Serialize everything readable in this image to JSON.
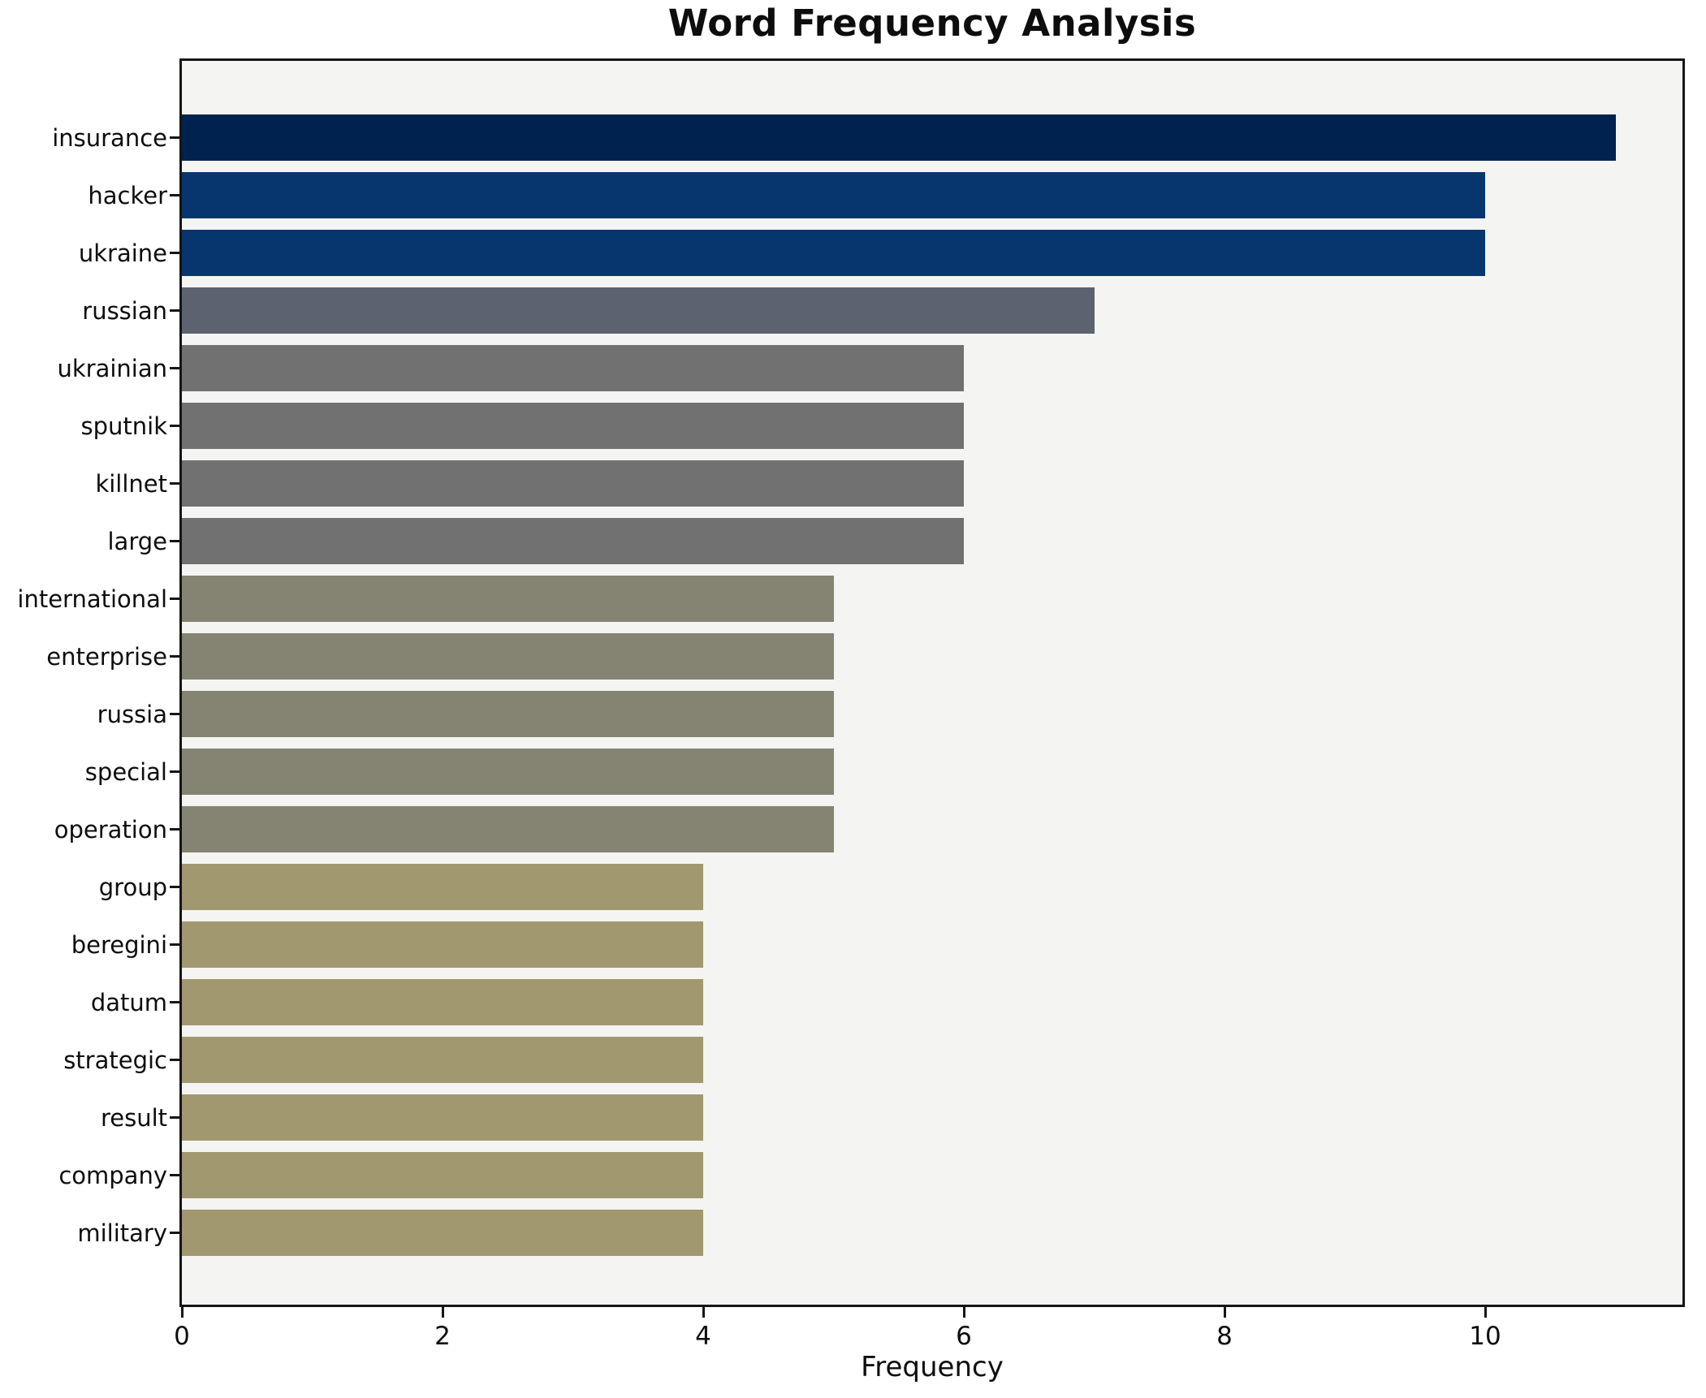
{
  "title": "Word Frequency Analysis",
  "x_axis": {
    "label": "Frequency",
    "tick_labels": [
      "0",
      "2",
      "4",
      "6",
      "8",
      "10"
    ]
  },
  "chart_data": {
    "type": "bar",
    "orientation": "horizontal",
    "title": "Word Frequency Analysis",
    "xlabel": "Frequency",
    "ylabel": "",
    "categories": [
      "insurance",
      "hacker",
      "ukraine",
      "russian",
      "ukrainian",
      "sputnik",
      "killnet",
      "large",
      "international",
      "enterprise",
      "russia",
      "special",
      "operation",
      "group",
      "beregini",
      "datum",
      "strategic",
      "result",
      "company",
      "military"
    ],
    "values": [
      11,
      10,
      10,
      7,
      6,
      6,
      6,
      6,
      5,
      5,
      5,
      5,
      5,
      4,
      4,
      4,
      4,
      4,
      4,
      4
    ],
    "bar_colors": [
      "#00224E",
      "#07366E",
      "#07366E",
      "#5C6270",
      "#717171",
      "#717171",
      "#717171",
      "#717171",
      "#858472",
      "#858472",
      "#858472",
      "#858472",
      "#858472",
      "#A29870",
      "#A29870",
      "#A29870",
      "#A29870",
      "#A29870",
      "#A29870",
      "#A29870"
    ],
    "xticks": [
      0,
      2,
      4,
      6,
      8,
      10
    ],
    "xlim": [
      0,
      11.55
    ],
    "grid": false,
    "legend": null,
    "plot_bg": "#F4F4F2",
    "fig_bg": "#FFFFFF",
    "spine_color": "#161616",
    "text_color": "#0D0D0D"
  }
}
